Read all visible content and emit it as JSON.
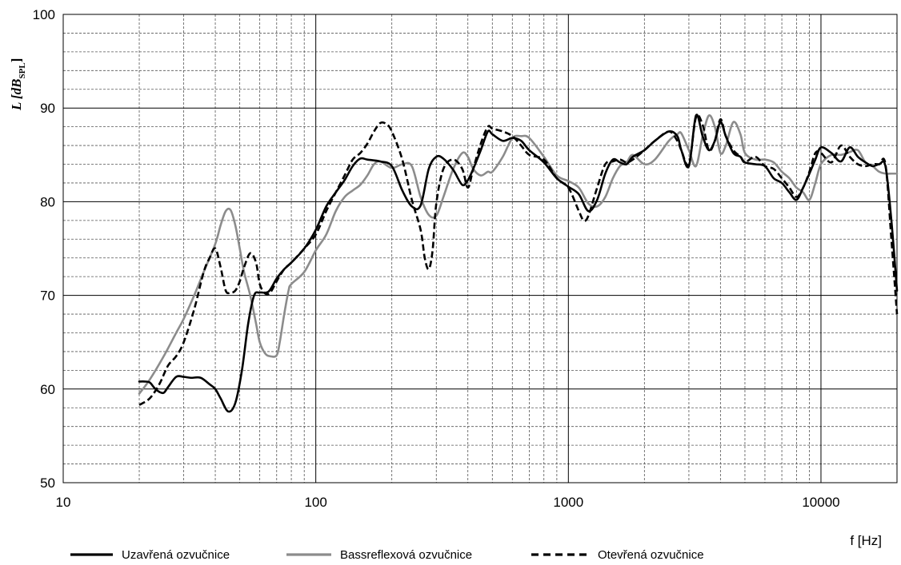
{
  "chart_data": {
    "type": "line",
    "xscale": "log",
    "xlim": [
      10,
      20000
    ],
    "ylim": [
      50,
      100
    ],
    "ylabel": "L [dB",
    "ylabel_subscript": "SPL",
    "ylabel_close": "]",
    "xlabel": "f [Hz]",
    "y_ticks": [
      50,
      60,
      70,
      80,
      90,
      100
    ],
    "x_ticks": [
      10,
      100,
      1000,
      10000
    ],
    "y_tick_labels": [
      "50",
      "60",
      "70",
      "80",
      "90",
      "100"
    ],
    "x_tick_labels": [
      "10",
      "100",
      "1000",
      "10000"
    ],
    "grid": true,
    "legend_position": "bottom",
    "series": [
      {
        "name": "Uzavřená ozvučnice",
        "color": "#000000",
        "style": "solid",
        "x": [
          20,
          21,
          22,
          23,
          24,
          25,
          26,
          28,
          30,
          32,
          35,
          38,
          40,
          42,
          45,
          48,
          51,
          54,
          57,
          60,
          65,
          70,
          75,
          80,
          90,
          100,
          110,
          120,
          130,
          140,
          150,
          160,
          180,
          200,
          220,
          240,
          260,
          280,
          300,
          320,
          350,
          380,
          400,
          420,
          450,
          480,
          500,
          550,
          600,
          650,
          700,
          800,
          900,
          1000,
          1100,
          1200,
          1300,
          1400,
          1500,
          1600,
          1700,
          1800,
          2000,
          2200,
          2500,
          2700,
          2800,
          3000,
          3200,
          3400,
          3600,
          3800,
          4000,
          4200,
          4500,
          4800,
          5000,
          5500,
          6000,
          6500,
          7000,
          7500,
          8000,
          8500,
          9000,
          9500,
          10000,
          11000,
          12000,
          13000,
          14000,
          15000,
          16000,
          17000,
          18000,
          19000,
          20000
        ],
        "y": [
          60.8,
          60.8,
          60.7,
          60.1,
          59.7,
          59.6,
          60.2,
          61.3,
          61.3,
          61.2,
          61.2,
          60.5,
          60,
          59,
          57.6,
          58.5,
          62,
          67,
          70,
          70.3,
          70.4,
          71.8,
          72.8,
          73.5,
          75,
          77,
          79.5,
          81,
          82.3,
          83.8,
          84.6,
          84.5,
          84.3,
          83.8,
          81.2,
          79.5,
          79.6,
          83.5,
          84.8,
          84.6,
          83.4,
          81.8,
          82.3,
          83.5,
          85.5,
          87.5,
          87.2,
          86.5,
          86.8,
          86.5,
          85.5,
          84.2,
          82.5,
          81.6,
          80.8,
          79,
          80.2,
          83,
          84.5,
          84.2,
          84,
          84.8,
          85.5,
          86.5,
          87.5,
          87,
          85.5,
          83.8,
          89.2,
          87,
          85.5,
          86.5,
          88.5,
          87,
          85.2,
          84.8,
          84.2,
          84,
          83.8,
          82.5,
          82,
          81,
          80.2,
          81.5,
          83,
          84.5,
          85.8,
          85.2,
          84.3,
          85.8,
          84.8,
          84.2,
          83.8,
          84,
          83.8,
          78,
          70.5
        ]
      },
      {
        "name": "Bassreflexová ozvučnice",
        "color": "#8c8c8c",
        "style": "solid",
        "x": [
          20,
          22,
          25,
          28,
          30,
          33,
          36,
          40,
          42,
          44,
          46,
          48,
          50,
          52,
          55,
          58,
          60,
          63,
          66,
          70,
          72,
          75,
          78,
          80,
          90,
          100,
          110,
          120,
          130,
          140,
          150,
          160,
          170,
          180,
          200,
          220,
          240,
          260,
          280,
          300,
          320,
          350,
          380,
          400,
          420,
          450,
          480,
          500,
          550,
          600,
          650,
          700,
          800,
          900,
          1000,
          1100,
          1200,
          1300,
          1400,
          1500,
          1600,
          1700,
          1800,
          2000,
          2200,
          2500,
          2700,
          2800,
          3000,
          3200,
          3400,
          3600,
          3800,
          4000,
          4200,
          4500,
          4800,
          5000,
          5500,
          6000,
          6500,
          7000,
          7500,
          8000,
          8500,
          9000,
          9500,
          10000,
          11000,
          12000,
          13000,
          14000,
          15000,
          16000,
          17000,
          18000,
          19000,
          20000
        ],
        "y": [
          59.5,
          61,
          63.5,
          66,
          67.5,
          70,
          72.5,
          75.5,
          77.5,
          79,
          79.1,
          77.5,
          75,
          72.5,
          70,
          67,
          65,
          63.8,
          63.5,
          63.6,
          65,
          68,
          70.5,
          71.2,
          72.5,
          74.8,
          76.5,
          79,
          80.5,
          81.2,
          81.8,
          82.8,
          84,
          84.3,
          83.6,
          84,
          83.8,
          80.5,
          78.6,
          78.5,
          80.5,
          83.5,
          85.2,
          84.8,
          83.5,
          82.8,
          83.2,
          83.2,
          84.8,
          86.8,
          87,
          86.8,
          84.8,
          82.8,
          82.2,
          81.5,
          79.8,
          79.5,
          80.5,
          82.5,
          83.8,
          84.2,
          85,
          84,
          84.5,
          86.5,
          87.2,
          87.3,
          85.5,
          83.8,
          87,
          89.2,
          88,
          85.2,
          86,
          88.5,
          87.2,
          85.2,
          84.5,
          84.5,
          84.2,
          83.2,
          82.5,
          81.5,
          81,
          80.2,
          82,
          84,
          85,
          85,
          85.3,
          85.5,
          84.2,
          83.8,
          83.2,
          83,
          83,
          83
        ]
      },
      {
        "name": "Otevřená ozvučnice",
        "color": "#000000",
        "style": "dashed",
        "x": [
          20,
          22,
          24,
          26,
          28,
          30,
          33,
          36,
          38,
          40,
          42,
          44,
          46,
          48,
          50,
          52,
          55,
          58,
          60,
          63,
          66,
          70,
          75,
          80,
          90,
          100,
          110,
          120,
          130,
          140,
          150,
          160,
          170,
          180,
          190,
          200,
          220,
          240,
          260,
          270,
          280,
          290,
          300,
          320,
          350,
          380,
          400,
          420,
          450,
          480,
          500,
          550,
          600,
          650,
          700,
          800,
          900,
          1000,
          1100,
          1150,
          1200,
          1300,
          1400,
          1500,
          1600,
          1700,
          1800,
          2000,
          2200,
          2500,
          2700,
          2800,
          3000,
          3200,
          3400,
          3600,
          3800,
          4000,
          4200,
          4500,
          4800,
          5000,
          5500,
          6000,
          6500,
          7000,
          7500,
          8000,
          8500,
          9000,
          9500,
          10000,
          11000,
          12000,
          13000,
          14000,
          15000,
          16000,
          17000,
          18000,
          19000,
          20000
        ],
        "y": [
          58.3,
          59,
          60.5,
          62.5,
          63.5,
          65,
          68.5,
          72.5,
          74,
          75,
          73,
          70.5,
          70.3,
          70.5,
          71.5,
          73,
          74.5,
          73.5,
          71.2,
          70.2,
          70.3,
          71.5,
          72.8,
          73.5,
          75,
          76.5,
          79,
          81,
          82.8,
          84.5,
          85.2,
          86.2,
          87.5,
          88.4,
          88.3,
          87.5,
          84.5,
          80.2,
          77,
          74,
          72.8,
          74.8,
          79.8,
          83.5,
          84.5,
          83.5,
          81.5,
          83.5,
          86.2,
          88,
          87.8,
          87.5,
          87,
          86,
          85,
          84.5,
          82.5,
          81.5,
          79,
          78,
          78.5,
          81.5,
          84,
          84.3,
          84.5,
          84.2,
          84.5,
          85.5,
          86.5,
          87.5,
          86.5,
          85.5,
          84,
          89,
          88.2,
          85.5,
          86.5,
          88.8,
          87,
          85.5,
          84.8,
          84.2,
          84.8,
          83.8,
          83.5,
          82.5,
          81.5,
          80.5,
          81.5,
          83.2,
          85.2,
          85.2,
          84.2,
          86,
          84.8,
          84,
          83.8,
          84,
          84,
          84,
          76,
          68
        ]
      }
    ]
  }
}
